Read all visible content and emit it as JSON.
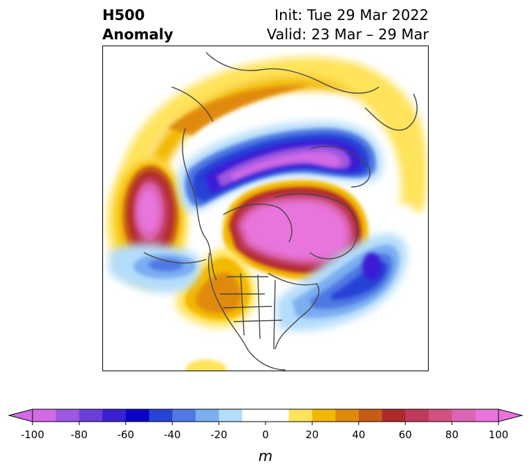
{
  "title": {
    "line1": "H500",
    "line2": "Anomaly",
    "init": "Init: Tue 29 Mar 2022",
    "valid": "Valid: 23 Mar – 29 Mar"
  },
  "colorbar": {
    "ticks": [
      "-100",
      "-80",
      "-60",
      "-40",
      "-20",
      "0",
      "20",
      "40",
      "60",
      "80",
      "100"
    ],
    "unit": "m",
    "colors": [
      "#d26ae6",
      "#9d57e0",
      "#6a3ed9",
      "#3b1fd4",
      "#0b00c8",
      "#2743d6",
      "#4f78e3",
      "#7aaef0",
      "#b4dcfb",
      "#ffffff",
      "#ffe35a",
      "#f2b800",
      "#e08a0d",
      "#c75c17",
      "#b0292a",
      "#c03a5c",
      "#d1507f",
      "#dc64b4",
      "#e874dc"
    ]
  },
  "map": {
    "projection": "polar-stereographic",
    "variable": "500 hPa geopotential height anomaly",
    "border_color": "#444444"
  }
}
